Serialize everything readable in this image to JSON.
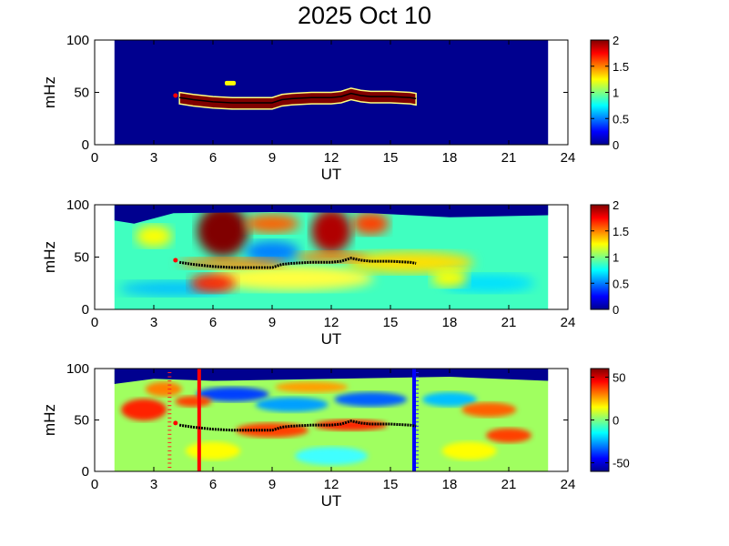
{
  "chart_data": {
    "type": "heatmap",
    "title": "2025 Oct 10",
    "panels": [
      {
        "name": "panel-1",
        "xlabel": "UT",
        "ylabel": "mHz",
        "xlim": [
          0,
          24
        ],
        "ylim": [
          0,
          100
        ],
        "xticks": [
          "0",
          "3",
          "6",
          "9",
          "12",
          "15",
          "18",
          "21",
          "24"
        ],
        "yticks": [
          "0",
          "50",
          "100"
        ],
        "data_time_range": [
          1,
          23
        ],
        "colorbar": {
          "clim": [
            0,
            2
          ],
          "ticks": [
            "0",
            "0.5",
            "1",
            "1.5",
            "2"
          ]
        },
        "description_values": {
          "background": 0,
          "band_value": 2
        }
      },
      {
        "name": "panel-2",
        "xlabel": "UT",
        "ylabel": "mHz",
        "xlim": [
          0,
          24
        ],
        "ylim": [
          0,
          100
        ],
        "xticks": [
          "0",
          "3",
          "6",
          "9",
          "12",
          "15",
          "18",
          "21",
          "24"
        ],
        "yticks": [
          "0",
          "50",
          "100"
        ],
        "data_time_range": [
          1,
          23
        ],
        "colorbar": {
          "clim": [
            0,
            2
          ],
          "ticks": [
            "0",
            "0.5",
            "1",
            "1.5",
            "2"
          ]
        }
      },
      {
        "name": "panel-3",
        "xlabel": "UT",
        "ylabel": "mHz",
        "xlim": [
          0,
          24
        ],
        "ylim": [
          0,
          100
        ],
        "xticks": [
          "0",
          "3",
          "6",
          "9",
          "12",
          "15",
          "18",
          "21",
          "24"
        ],
        "yticks": [
          "0",
          "50",
          "100"
        ],
        "data_time_range": [
          1,
          23
        ],
        "colorbar": {
          "clim": [
            -60,
            60
          ],
          "ticks": [
            "-50",
            "0",
            "50"
          ]
        },
        "markers": {
          "red_line_ut": 5.3,
          "blue_line_ut": 16.2,
          "red_dotted_ut": 3.8
        }
      }
    ],
    "peak_frequency_track": {
      "ut": [
        4.3,
        5.0,
        6.0,
        7.0,
        8.0,
        9.0,
        9.5,
        10.0,
        11.0,
        12.0,
        12.5,
        13.0,
        13.5,
        14.0,
        15.0,
        16.0,
        16.3
      ],
      "mHz": [
        45,
        43,
        41,
        40,
        40,
        40,
        43,
        44,
        45,
        45,
        46,
        49,
        47,
        46,
        46,
        45,
        44
      ]
    },
    "start_marker": {
      "ut": 4.1,
      "mHz": 47
    }
  }
}
